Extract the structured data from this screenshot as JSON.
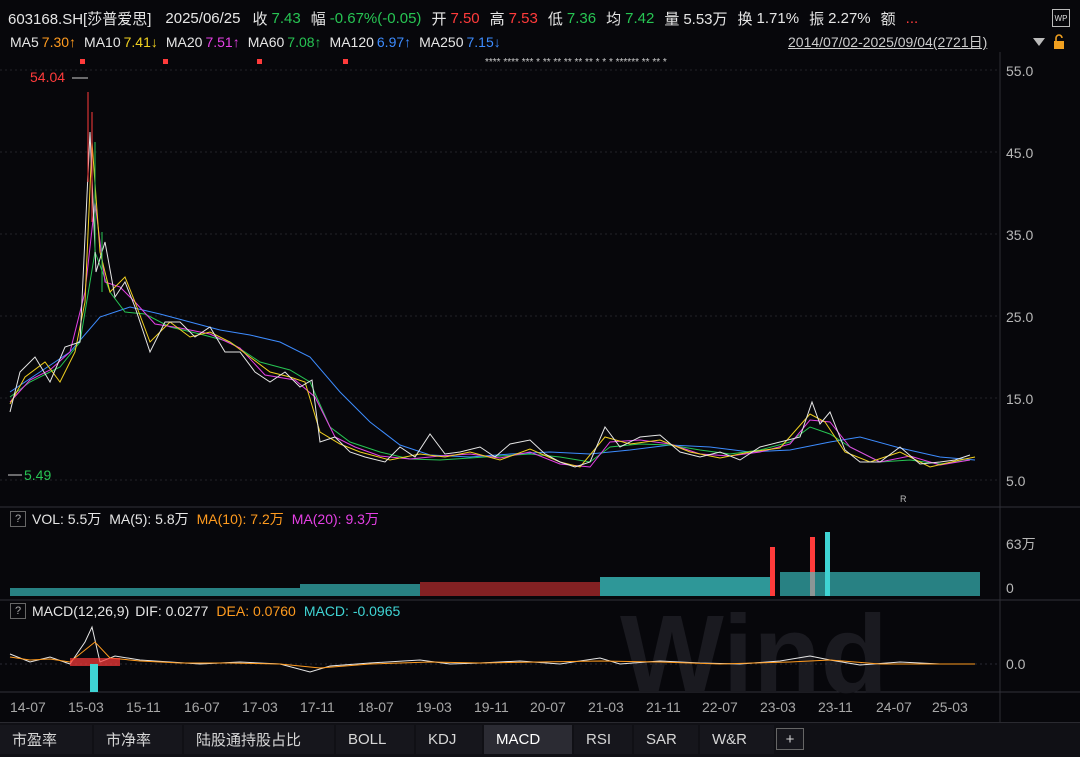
{
  "header": {
    "code": "603168.SH[莎普爱思]",
    "date": "2025/06/25",
    "close_label": "收",
    "close_value": "7.43",
    "change_label": "幅",
    "change_value": "-0.67%(-0.05)",
    "open_label": "开",
    "open_value": "7.50",
    "high_label": "高",
    "high_value": "7.53",
    "low_label": "低",
    "low_value": "7.36",
    "avg_label": "均",
    "avg_value": "7.42",
    "vol_label": "量",
    "vol_value": "5.53万",
    "turnover_label": "换",
    "turnover_value": "1.71%",
    "amplitude_label": "振",
    "amplitude_value": "2.27%",
    "amount_label": "额",
    "more": "..."
  },
  "ma_row": {
    "ma5_label": "MA5",
    "ma5_value": "7.30↑",
    "ma10_label": "MA10",
    "ma10_value": "7.41↓",
    "ma20_label": "MA20",
    "ma20_value": "7.51↑",
    "ma60_label": "MA60",
    "ma60_value": "7.08↑",
    "ma120_label": "MA120",
    "ma120_value": "6.97↑",
    "ma250_label": "MA250",
    "ma250_value": "7.15↓",
    "range": "2014/07/02-2025/09/04(2721日)"
  },
  "price_axis": [
    "55.0",
    "45.0",
    "35.0",
    "25.0",
    "15.0",
    "5.0"
  ],
  "price_annotations": {
    "max": "54.04",
    "min": "5.49",
    "r_marker": "R"
  },
  "vol_row": {
    "q": "?",
    "vol": "VOL: 5.5万",
    "ma5": "MA(5): 5.8万",
    "ma10": "MA(10): 7.2万",
    "ma20": "MA(20): 9.3万"
  },
  "vol_axis": [
    "63万",
    "0"
  ],
  "macd_row": {
    "q": "?",
    "name": "MACD(12,26,9)",
    "dif": "DIF: 0.0277",
    "dea": "DEA: 0.0760",
    "macd": "MACD: -0.0965"
  },
  "macd_axis": [
    "0.0"
  ],
  "x_axis": [
    "14-07",
    "15-03",
    "15-11",
    "16-07",
    "17-03",
    "17-11",
    "18-07",
    "19-03",
    "19-11",
    "20-07",
    "21-03",
    "21-11",
    "22-07",
    "23-03",
    "23-11",
    "24-07",
    "25-03"
  ],
  "tabs": [
    "市盈率",
    "市净率",
    "陆股通持股占比",
    "BOLL",
    "KDJ",
    "MACD",
    "RSI",
    "SAR",
    "W&R",
    "+"
  ],
  "active_tab": "MACD",
  "watermark": "Wind",
  "colors": {
    "up": "#ff3b3b",
    "down": "#27c453",
    "vol_down": "#3fd4d4",
    "ma5": "#e6e6e6",
    "ma10": "#f0d020",
    "ma20": "#e540e5",
    "ma60": "#27c453",
    "ma120": "#3d8cff"
  }
}
